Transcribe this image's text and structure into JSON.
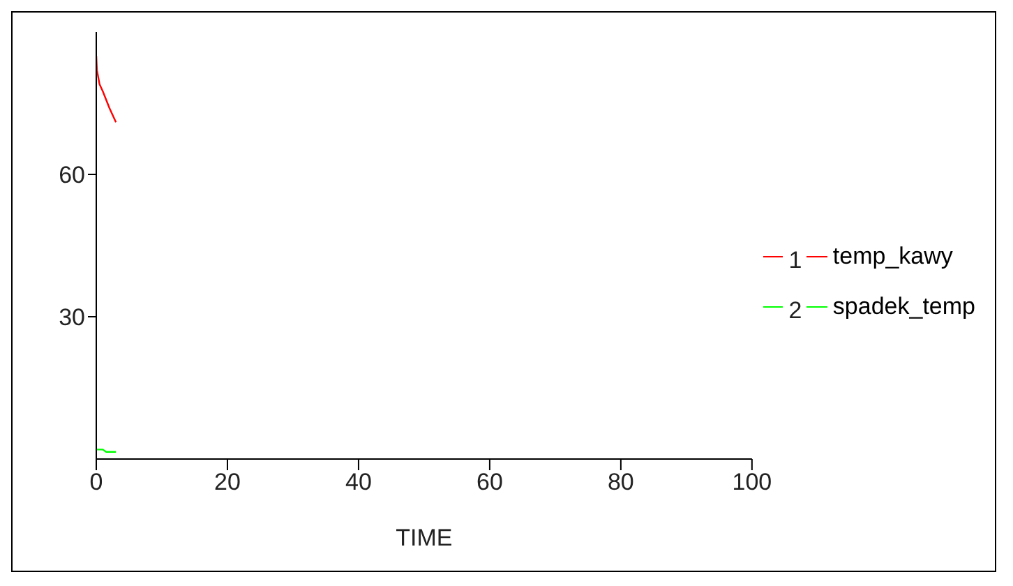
{
  "chart_data": {
    "type": "line",
    "xlabel": "TIME",
    "annotations": [
      "1",
      "2"
    ],
    "series": [
      {
        "name": "temp_kawy",
        "color": "#ff0000",
        "x": [
          0,
          0.1,
          0.5,
          1,
          2,
          3
        ],
        "values": [
          85,
          82,
          79,
          77.5,
          74,
          71
        ]
      },
      {
        "name": "spadek_temp",
        "color": "#00ff00",
        "x": [
          0,
          1,
          1.5,
          3
        ],
        "values": [
          2,
          2,
          1.5,
          1.5
        ]
      }
    ],
    "xlim": [
      0,
      100
    ],
    "xticks": [
      0,
      20,
      40,
      60,
      80,
      100
    ],
    "ylim": [
      0,
      90
    ],
    "yticks": [
      30,
      60
    ],
    "grid": false,
    "legend": "right",
    "marker": "none",
    "line_style": "solid"
  }
}
